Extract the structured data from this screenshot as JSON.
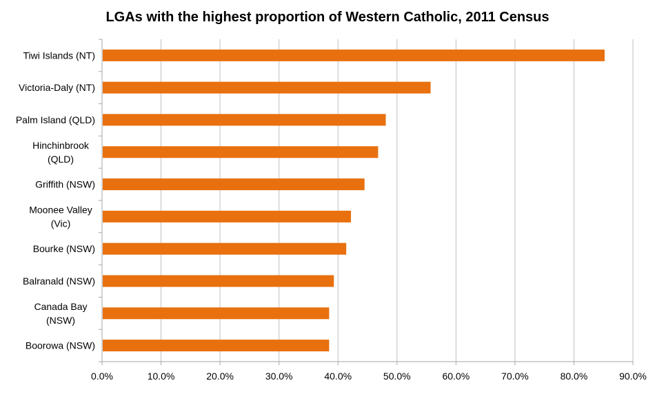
{
  "chart_data": {
    "type": "bar",
    "orientation": "horizontal",
    "title": "LGAs with the highest proportion of Western Catholic, 2011 Census",
    "xlabel": "",
    "ylabel": "",
    "categories": [
      [
        "Tiwi Islands (NT)"
      ],
      [
        "Victoria-Daly (NT)"
      ],
      [
        "Palm Island (QLD)"
      ],
      [
        "Hinchinbrook",
        "(QLD)"
      ],
      [
        "Griffith (NSW)"
      ],
      [
        "Moonee Valley",
        "(Vic)"
      ],
      [
        "Bourke (NSW)"
      ],
      [
        "Balranald (NSW)"
      ],
      [
        "Canada Bay",
        "(NSW)"
      ],
      [
        "Boorowa (NSW)"
      ]
    ],
    "values": [
      85.2,
      55.7,
      48.1,
      46.8,
      44.5,
      42.2,
      41.4,
      39.3,
      38.5,
      38.5
    ],
    "xlim": [
      0,
      90
    ],
    "xticks": [
      0,
      10,
      20,
      30,
      40,
      50,
      60,
      70,
      80,
      90
    ],
    "xtick_labels": [
      "0.0%",
      "10.0%",
      "20.0%",
      "30.0%",
      "40.0%",
      "50.0%",
      "60.0%",
      "70.0%",
      "80.0%",
      "90.0%"
    ],
    "grid": "vertical",
    "legend": "none",
    "bar_color": "#E8700F",
    "grid_color": "#BFBFBF",
    "axis_color": "#A6A6A6"
  }
}
